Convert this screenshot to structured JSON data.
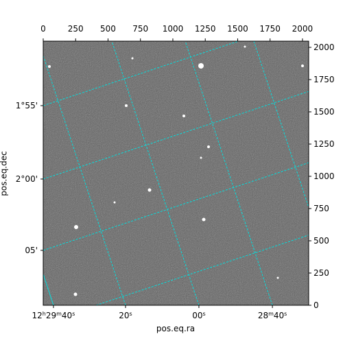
{
  "chart_data": {
    "type": "image",
    "xlabel": "pos.eq.ra",
    "ylabel": "pos.eq.dec",
    "xlim": [
      0,
      2048
    ],
    "ylim": [
      0,
      2048
    ],
    "xticks": [
      0,
      250,
      500,
      750,
      1000,
      1250,
      1500,
      1750,
      2000
    ],
    "yticks": [
      0,
      250,
      500,
      750,
      1000,
      1250,
      1500,
      1750,
      2000
    ],
    "ra_ticks": [
      {
        "value": 79,
        "label": "12h29m40s"
      },
      {
        "value": 635,
        "label": "20s"
      },
      {
        "value": 1201,
        "label": "00s"
      },
      {
        "value": 1768,
        "label": "28m40s"
      }
    ],
    "dec_ticks": [
      {
        "value": 1548,
        "label": "1°55'"
      },
      {
        "value": 979,
        "label": "2°00'"
      },
      {
        "value": 426,
        "label": "05'"
      }
    ],
    "grid_color": "#00e0e0"
  }
}
